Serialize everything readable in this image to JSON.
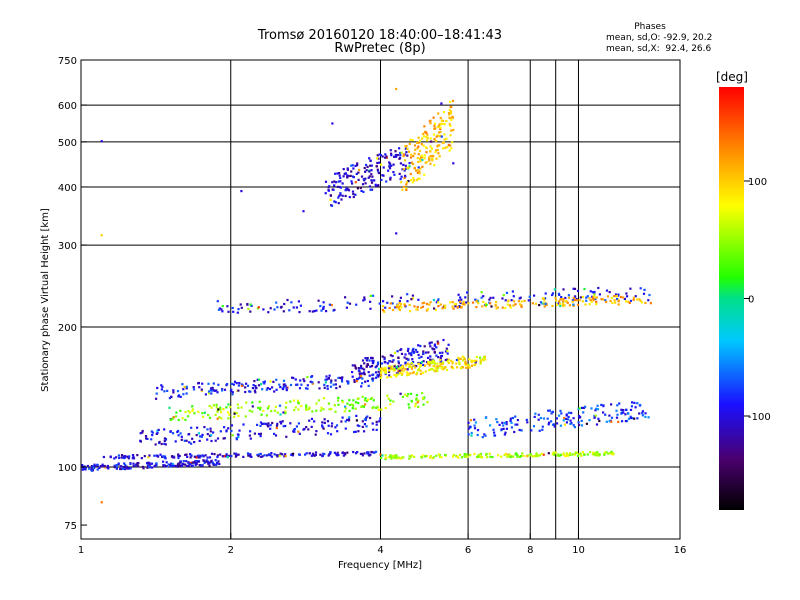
{
  "header": {
    "title_line1": "Tromsø 20160120 18:40:00–18:41:43",
    "title_line2": "RwPretec (8p)"
  },
  "phases": {
    "heading": "Phases",
    "line_o": "mean, sd,O: -92.9, 20.2",
    "line_x": "mean, sd,X:  92.4, 26.6"
  },
  "colorbar": {
    "unit": "[deg]",
    "ticks": [
      {
        "value": 100,
        "label": "100"
      },
      {
        "value": 0,
        "label": "0"
      },
      {
        "value": -100,
        "label": "-100"
      }
    ],
    "range": [
      -180,
      180
    ]
  },
  "chart_data": {
    "type": "scatter",
    "title": "Tromsø 20160120 18:40:00–18:41:43",
    "subtitle": "RwPretec (8p)",
    "xlabel": "Frequency [MHz]",
    "ylabel": "Stationary phase Virtual Height [km]",
    "x_scale": "log",
    "y_scale": "log",
    "xlim": [
      1,
      16
    ],
    "ylim": [
      70,
      750
    ],
    "x_ticks": [
      1,
      2,
      4,
      6,
      8,
      10,
      16
    ],
    "x_tick_labels": [
      "1",
      "2",
      "4",
      "6",
      "8",
      "10",
      "16"
    ],
    "x_grid": [
      2,
      4,
      6,
      8,
      9,
      10
    ],
    "y_ticks": [
      75,
      100,
      200,
      300,
      400,
      500,
      600,
      750
    ],
    "y_tick_labels": [
      "75",
      "100",
      "200",
      "300",
      "400",
      "500",
      "600",
      "750"
    ],
    "y_grid": [
      100,
      200,
      300,
      400,
      500,
      600
    ],
    "grid": true,
    "color_encoding": "phase (deg)",
    "traces": [
      {
        "x_range": [
          1.0,
          1.9
        ],
        "y_range": [
          98,
          104
        ],
        "phase": -100
      },
      {
        "x_range": [
          1.1,
          4.0
        ],
        "y_range": [
          104,
          108
        ],
        "phase": -100
      },
      {
        "x_range": [
          4.0,
          11.8
        ],
        "y_range": [
          104,
          108
        ],
        "phase": 60
      },
      {
        "x_range": [
          1.3,
          4.0
        ],
        "y_range": [
          110,
          130
        ],
        "phase": -100
      },
      {
        "x_range": [
          1.5,
          5.0
        ],
        "y_range": [
          125,
          145
        ],
        "phase": 50
      },
      {
        "x_range": [
          1.4,
          4.0
        ],
        "y_range": [
          140,
          160
        ],
        "phase": -95
      },
      {
        "x_range": [
          3.5,
          5.5
        ],
        "y_range": [
          150,
          190
        ],
        "phase": -105
      },
      {
        "x_range": [
          4.0,
          6.5
        ],
        "y_range": [
          155,
          175
        ],
        "phase": 90
      },
      {
        "x_range": [
          6.0,
          14.0
        ],
        "y_range": [
          115,
          140
        ],
        "phase": -80
      },
      {
        "x_range": [
          1.8,
          14.0
        ],
        "y_range": [
          212,
          245
        ],
        "phase": -95
      },
      {
        "x_range": [
          4.0,
          14.0
        ],
        "y_range": [
          215,
          235
        ],
        "phase": 110
      },
      {
        "x_range": [
          3.1,
          4.6
        ],
        "y_range": [
          360,
          500
        ],
        "phase": -105
      },
      {
        "x_range": [
          4.4,
          5.6
        ],
        "y_range": [
          380,
          620
        ],
        "phase": 110
      }
    ],
    "isolated_points": [
      {
        "x": 1.1,
        "y": 502,
        "phase": -100
      },
      {
        "x": 1.1,
        "y": 315,
        "phase": 100
      },
      {
        "x": 1.1,
        "y": 84,
        "phase": 140
      },
      {
        "x": 3.2,
        "y": 548,
        "phase": -100
      },
      {
        "x": 2.1,
        "y": 392,
        "phase": -100
      },
      {
        "x": 2.8,
        "y": 355,
        "phase": -100
      },
      {
        "x": 4.3,
        "y": 650,
        "phase": 120
      },
      {
        "x": 5.3,
        "y": 605,
        "phase": -100
      },
      {
        "x": 4.3,
        "y": 318,
        "phase": -100
      },
      {
        "x": 5.6,
        "y": 450,
        "phase": -100
      }
    ]
  }
}
